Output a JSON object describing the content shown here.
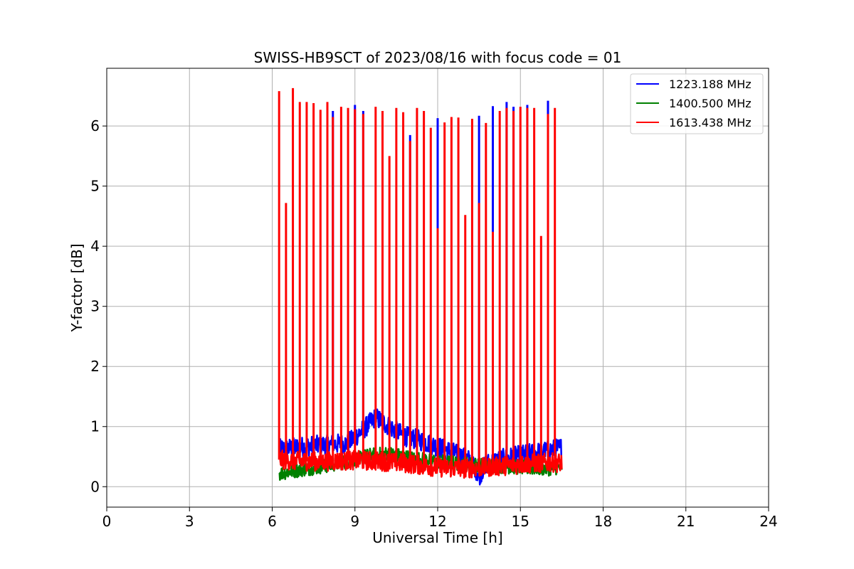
{
  "chart_data": {
    "type": "line",
    "title": "SWISS-HB9SCT of 2023/08/16 with focus code = 01",
    "xlabel": "Universal Time [h]",
    "ylabel": "Y-factor [dB]",
    "xlim": [
      0,
      24
    ],
    "ylim": [
      -0.34,
      6.96
    ],
    "xticks": [
      0,
      3,
      6,
      9,
      12,
      15,
      18,
      21,
      24
    ],
    "yticks": [
      0,
      1,
      2,
      3,
      4,
      5,
      6
    ],
    "grid": true,
    "legend_position": "top-right",
    "series": [
      {
        "name": "1223.188 MHz",
        "color": "#0000ff",
        "baseline": [
          [
            6.25,
            0.62
          ],
          [
            7.0,
            0.66
          ],
          [
            8.0,
            0.7
          ],
          [
            8.75,
            0.72
          ],
          [
            9.3,
            0.95
          ],
          [
            9.75,
            1.15
          ],
          [
            10.25,
            1.0
          ],
          [
            10.75,
            0.85
          ],
          [
            11.5,
            0.75
          ],
          [
            12.5,
            0.58
          ],
          [
            13.25,
            0.42
          ],
          [
            13.5,
            0.18
          ],
          [
            13.75,
            0.38
          ],
          [
            14.25,
            0.45
          ],
          [
            15.0,
            0.52
          ],
          [
            16.0,
            0.6
          ],
          [
            16.5,
            0.65
          ]
        ],
        "spikes": [
          [
            8.2,
            6.25
          ],
          [
            9.0,
            6.35
          ],
          [
            9.3,
            6.25
          ],
          [
            11.0,
            5.85
          ],
          [
            12.0,
            6.13
          ],
          [
            13.5,
            6.17
          ],
          [
            14.0,
            6.33
          ],
          [
            14.5,
            6.4
          ],
          [
            14.75,
            6.32
          ],
          [
            15.25,
            6.35
          ],
          [
            16.0,
            6.42
          ]
        ]
      },
      {
        "name": "1400.500 MHz",
        "color": "#008000",
        "baseline": [
          [
            6.25,
            0.22
          ],
          [
            7.0,
            0.28
          ],
          [
            8.0,
            0.35
          ],
          [
            8.75,
            0.42
          ],
          [
            9.5,
            0.52
          ],
          [
            10.25,
            0.55
          ],
          [
            11.0,
            0.48
          ],
          [
            12.0,
            0.42
          ],
          [
            13.0,
            0.38
          ],
          [
            14.0,
            0.35
          ],
          [
            15.0,
            0.32
          ],
          [
            16.0,
            0.3
          ],
          [
            16.5,
            0.33
          ]
        ]
      },
      {
        "name": "1613.438 MHz",
        "color": "#ff0000",
        "baseline": [
          [
            6.25,
            0.45
          ],
          [
            7.0,
            0.42
          ],
          [
            8.0,
            0.42
          ],
          [
            9.0,
            0.44
          ],
          [
            10.0,
            0.42
          ],
          [
            11.0,
            0.38
          ],
          [
            12.0,
            0.32
          ],
          [
            13.0,
            0.3
          ],
          [
            14.0,
            0.33
          ],
          [
            15.0,
            0.37
          ],
          [
            16.0,
            0.4
          ],
          [
            16.5,
            0.4
          ]
        ],
        "spikes": [
          [
            6.25,
            6.58
          ],
          [
            6.5,
            4.72
          ],
          [
            6.75,
            6.63
          ],
          [
            7.0,
            6.4
          ],
          [
            7.25,
            6.4
          ],
          [
            7.5,
            6.38
          ],
          [
            7.75,
            6.27
          ],
          [
            8.0,
            6.4
          ],
          [
            8.2,
            6.15
          ],
          [
            8.5,
            6.32
          ],
          [
            8.75,
            6.3
          ],
          [
            9.0,
            6.28
          ],
          [
            9.3,
            6.2
          ],
          [
            9.75,
            6.32
          ],
          [
            10.0,
            6.25
          ],
          [
            10.25,
            5.5
          ],
          [
            10.5,
            6.3
          ],
          [
            10.75,
            6.23
          ],
          [
            11.0,
            5.75
          ],
          [
            11.25,
            6.3
          ],
          [
            11.5,
            6.25
          ],
          [
            11.75,
            5.97
          ],
          [
            12.0,
            4.3
          ],
          [
            12.25,
            6.06
          ],
          [
            12.5,
            6.15
          ],
          [
            12.75,
            6.14
          ],
          [
            13.0,
            4.52
          ],
          [
            13.25,
            6.12
          ],
          [
            13.5,
            4.72
          ],
          [
            13.75,
            6.05
          ],
          [
            14.0,
            4.24
          ],
          [
            14.25,
            6.25
          ],
          [
            14.5,
            6.3
          ],
          [
            14.75,
            6.25
          ],
          [
            15.0,
            6.32
          ],
          [
            15.25,
            6.3
          ],
          [
            15.5,
            6.3
          ],
          [
            15.75,
            4.17
          ],
          [
            16.0,
            6.2
          ],
          [
            16.25,
            6.3
          ]
        ]
      }
    ]
  }
}
